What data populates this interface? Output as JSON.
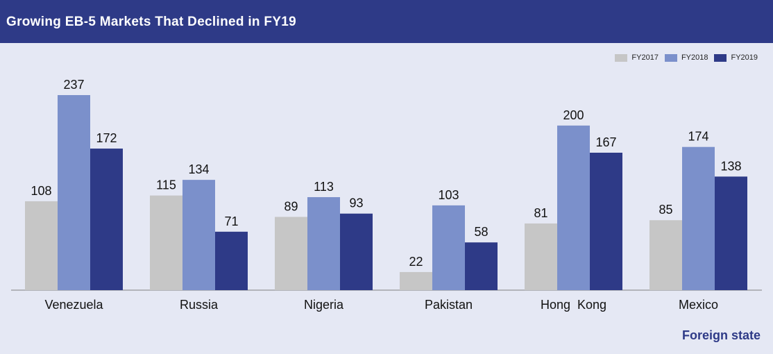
{
  "header": {
    "title": "Growing  EB-5 Markets That Declined in FY19"
  },
  "chart_data": {
    "type": "bar",
    "title": "Growing  EB-5 Markets That Declined in FY19",
    "categories": [
      "Venezuela",
      "Russia",
      "Nigeria",
      "Pakistan",
      "Hong  Kong",
      "Mexico"
    ],
    "series": [
      {
        "name": "FY2017",
        "color": "#c6c6c6",
        "values": [
          108,
          115,
          89,
          22,
          81,
          85
        ]
      },
      {
        "name": "FY2018",
        "color": "#7b90cb",
        "values": [
          237,
          134,
          113,
          103,
          200,
          174
        ]
      },
      {
        "name": "FY2019",
        "color": "#2e3a87",
        "values": [
          172,
          71,
          93,
          58,
          167,
          138
        ]
      }
    ],
    "xlabel": "Foreign state",
    "ylabel": "",
    "ylim": [
      0,
      237
    ],
    "grid": false,
    "legend": "top-right"
  }
}
